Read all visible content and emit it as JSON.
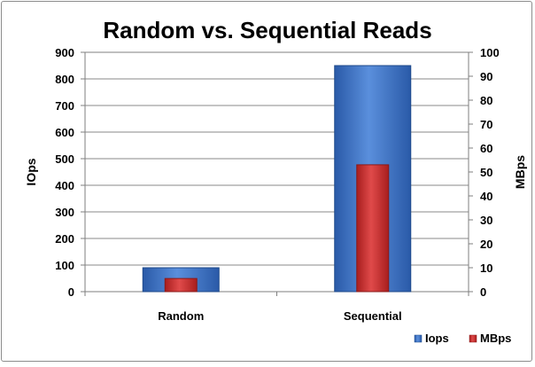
{
  "chart_data": {
    "type": "bar",
    "title": "Random vs. Sequential Reads",
    "categories": [
      "Random",
      "Sequential"
    ],
    "series": [
      {
        "name": "Iops",
        "axis": "left",
        "values": [
          90,
          850
        ],
        "color": "#3a6fc7"
      },
      {
        "name": "MBps",
        "axis": "right",
        "values": [
          5.5,
          53
        ],
        "color": "#cf2d2d"
      }
    ],
    "y_left": {
      "label": "IOps",
      "min": 0,
      "max": 900,
      "ticks": [
        "0",
        "100",
        "200",
        "300",
        "400",
        "500",
        "600",
        "700",
        "800",
        "900"
      ]
    },
    "y_right": {
      "label": "MBps",
      "min": 0,
      "max": 100,
      "ticks": [
        "0",
        "10",
        "20",
        "30",
        "40",
        "50",
        "60",
        "70",
        "80",
        "90",
        "100"
      ]
    },
    "grid": true,
    "legend_position": "bottom-right"
  }
}
